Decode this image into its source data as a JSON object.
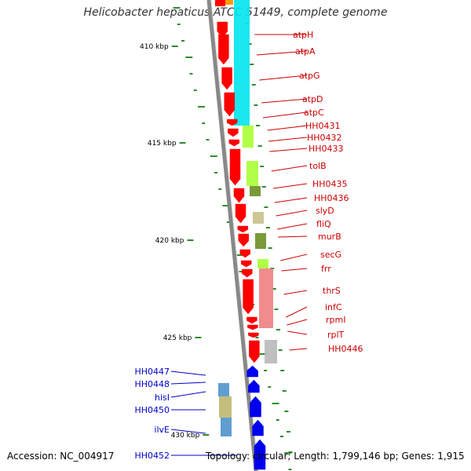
{
  "title": "Helicobacter hepaticus ATCC 51449, complete genome",
  "accession": "Accession: NC_004917",
  "summary": "Topology: circular; Length: 1,799,146 bp; Genes: 1,915",
  "colors": {
    "backbone": "#999999",
    "forward_gene": "#ff0000",
    "reverse_gene": "#0000ee",
    "forward_label": "#cc0000",
    "reverse_label": "#0000cc",
    "gc_tick": "#2e8b2e",
    "cog_cyan": "#00e5ee",
    "cog_lime": "#aaff33",
    "cog_olive": "#6b8e23",
    "cog_khaki": "#c8c08a",
    "cog_pink": "#f08080",
    "cog_gray": "#b8b8b8",
    "cog_steel": "#4f94cd",
    "cog_tan": "#bdb76b"
  },
  "scale_labels": [
    "410 kbp",
    "415 kbp",
    "420 kbp",
    "425 kbp",
    "430 kbp"
  ],
  "forward_genes": [
    {
      "name": "atpH"
    },
    {
      "name": "atpA"
    },
    {
      "name": "atpG"
    },
    {
      "name": "atpD"
    },
    {
      "name": "atpC"
    },
    {
      "name": "HH0431"
    },
    {
      "name": "HH0432"
    },
    {
      "name": "HH0433"
    },
    {
      "name": "tolB"
    },
    {
      "name": "HH0435"
    },
    {
      "name": "HH0436"
    },
    {
      "name": "slyD"
    },
    {
      "name": "fliQ"
    },
    {
      "name": "murB"
    },
    {
      "name": "secG"
    },
    {
      "name": "frr"
    },
    {
      "name": "thrS"
    },
    {
      "name": "infC"
    },
    {
      "name": "rpmI"
    },
    {
      "name": "rplT"
    },
    {
      "name": "HH0446"
    }
  ],
  "reverse_genes": [
    {
      "name": "HH0447"
    },
    {
      "name": "HH0448"
    },
    {
      "name": "hisI"
    },
    {
      "name": "HH0450"
    },
    {
      "name": "ilvE"
    },
    {
      "name": "HH0452"
    }
  ]
}
